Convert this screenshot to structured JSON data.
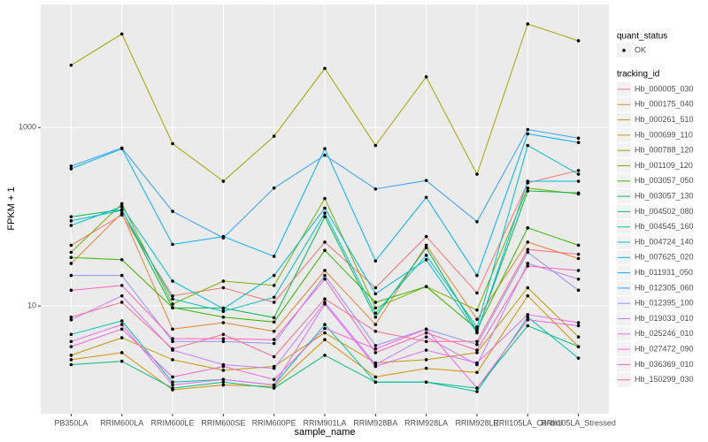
{
  "chart_data": {
    "type": "line",
    "x_label": "sample_name",
    "y_label": "FPKM + 1",
    "log_y": true,
    "grid": true,
    "categories": [
      "PB350LA",
      "RRIM600LA",
      "RRIM600LE",
      "RRIM600SE",
      "RRIM600PE",
      "RRIM901LA",
      "RRIM928BA",
      "RRIM928LA",
      "RRIM928LE",
      "RRII105LA_Control",
      "RRII105LA_Stressed"
    ],
    "ylim": [
      0.62,
      24000
    ],
    "yticks": [
      10,
      1000
    ],
    "point_legend_title": "quant_status",
    "point_legend": [
      "OK"
    ],
    "point_color": "#000000",
    "legend_title": "tracking_id",
    "series": [
      {
        "name": "Hb_000005_030",
        "color": "#F8766D",
        "values": [
          48,
          105,
          13,
          16,
          11,
          52,
          16,
          60,
          14,
          240,
          330
        ]
      },
      {
        "name": "Hb_000175_040",
        "color": "#EA8331",
        "values": [
          30,
          110,
          5.5,
          6.5,
          5.2,
          25,
          6.2,
          48,
          7.1,
          52,
          34
        ]
      },
      {
        "name": "Hb_000261_510",
        "color": "#D89000",
        "values": [
          2.5,
          3.0,
          1.15,
          1.3,
          1.25,
          4.2,
          1.6,
          2.0,
          1.8,
          13,
          3.5
        ]
      },
      {
        "name": "Hb_000699_110",
        "color": "#C09B00",
        "values": [
          2.8,
          4.4,
          2.5,
          1.9,
          2.1,
          5.0,
          2.3,
          2.5,
          3.0,
          16,
          4.5
        ]
      },
      {
        "name": "Hb_000788_120",
        "color": "#A3A500",
        "values": [
          5000,
          11200,
          660,
          250,
          800,
          4600,
          630,
          3700,
          300,
          14500,
          9400
        ]
      },
      {
        "name": "Hb_001109_120",
        "color": "#7CAE00",
        "values": [
          40,
          140,
          10.5,
          19,
          17,
          160,
          9.5,
          16.5,
          9,
          210,
          180
        ]
      },
      {
        "name": "Hb_003057_050",
        "color": "#39B600",
        "values": [
          35,
          33,
          9.6,
          7.5,
          6.6,
          42,
          11,
          16.5,
          5.5,
          75,
          48
        ]
      },
      {
        "name": "Hb_003057_130",
        "color": "#00BB4E",
        "values": [
          100,
          120,
          9.5,
          9.5,
          7.4,
          100,
          7.5,
          45,
          5.2,
          195,
          185
        ]
      },
      {
        "name": "Hb_004502_080",
        "color": "#00BF7D",
        "values": [
          2.2,
          2.4,
          1.2,
          1.4,
          1.2,
          2.8,
          1.4,
          1.4,
          1.2,
          6.0,
          3.5
        ]
      },
      {
        "name": "Hb_004545_160",
        "color": "#00C1A3",
        "values": [
          4.8,
          6.8,
          1.4,
          1.5,
          1.3,
          6.2,
          1.4,
          1.4,
          1.1,
          7.5,
          2.6
        ]
      },
      {
        "name": "Hb_004724_140",
        "color": "#00BFC4",
        "values": [
          90,
          118,
          12,
          8.7,
          12.5,
          110,
          8.3,
          37,
          5.8,
          630,
          300
        ]
      },
      {
        "name": "Hb_007625_020",
        "color": "#00BAE0",
        "values": [
          80,
          130,
          19,
          9.3,
          22,
          125,
          13.7,
          33,
          5,
          250,
          250
        ]
      },
      {
        "name": "Hb_011931_050",
        "color": "#00B0F6",
        "values": [
          345,
          580,
          49,
          60,
          36,
          580,
          32,
          165,
          22,
          850,
          680
        ]
      },
      {
        "name": "Hb_012305_060",
        "color": "#35A2FF",
        "values": [
          370,
          590,
          115,
          58,
          210,
          490,
          205,
          255,
          88,
          950,
          760
        ]
      },
      {
        "name": "Hb_012395_100",
        "color": "#9590FF",
        "values": [
          22,
          22,
          4.0,
          4.0,
          3.8,
          22,
          3.6,
          5.5,
          3.7,
          40,
          15
        ]
      },
      {
        "name": "Hb_019033_010",
        "color": "#C77CFF",
        "values": [
          7.0,
          13,
          3.2,
          2.2,
          2.0,
          11,
          2.2,
          4.5,
          2.2,
          30,
          20
        ]
      },
      {
        "name": "Hb_025246_010",
        "color": "#E76BF3",
        "values": [
          4.0,
          6.2,
          1.3,
          1.5,
          1.3,
          10.5,
          2.1,
          3.2,
          2.3,
          8,
          6.5
        ]
      },
      {
        "name": "Hb_027472_090",
        "color": "#FA62DB",
        "values": [
          3.5,
          5.5,
          1.6,
          2.1,
          1.5,
          5.6,
          3.3,
          5.5,
          1.2,
          7,
          6
        ]
      },
      {
        "name": "Hb_036369_010",
        "color": "#FF62BC",
        "values": [
          15,
          17,
          4.3,
          4.3,
          4.2,
          20,
          3.0,
          5.0,
          3.2,
          28,
          25
        ]
      },
      {
        "name": "Hb_150299_030",
        "color": "#FF6C91",
        "values": [
          7.5,
          11,
          3.3,
          4.8,
          2.7,
          12,
          5.2,
          4.0,
          4.0,
          43,
          38
        ]
      }
    ]
  }
}
